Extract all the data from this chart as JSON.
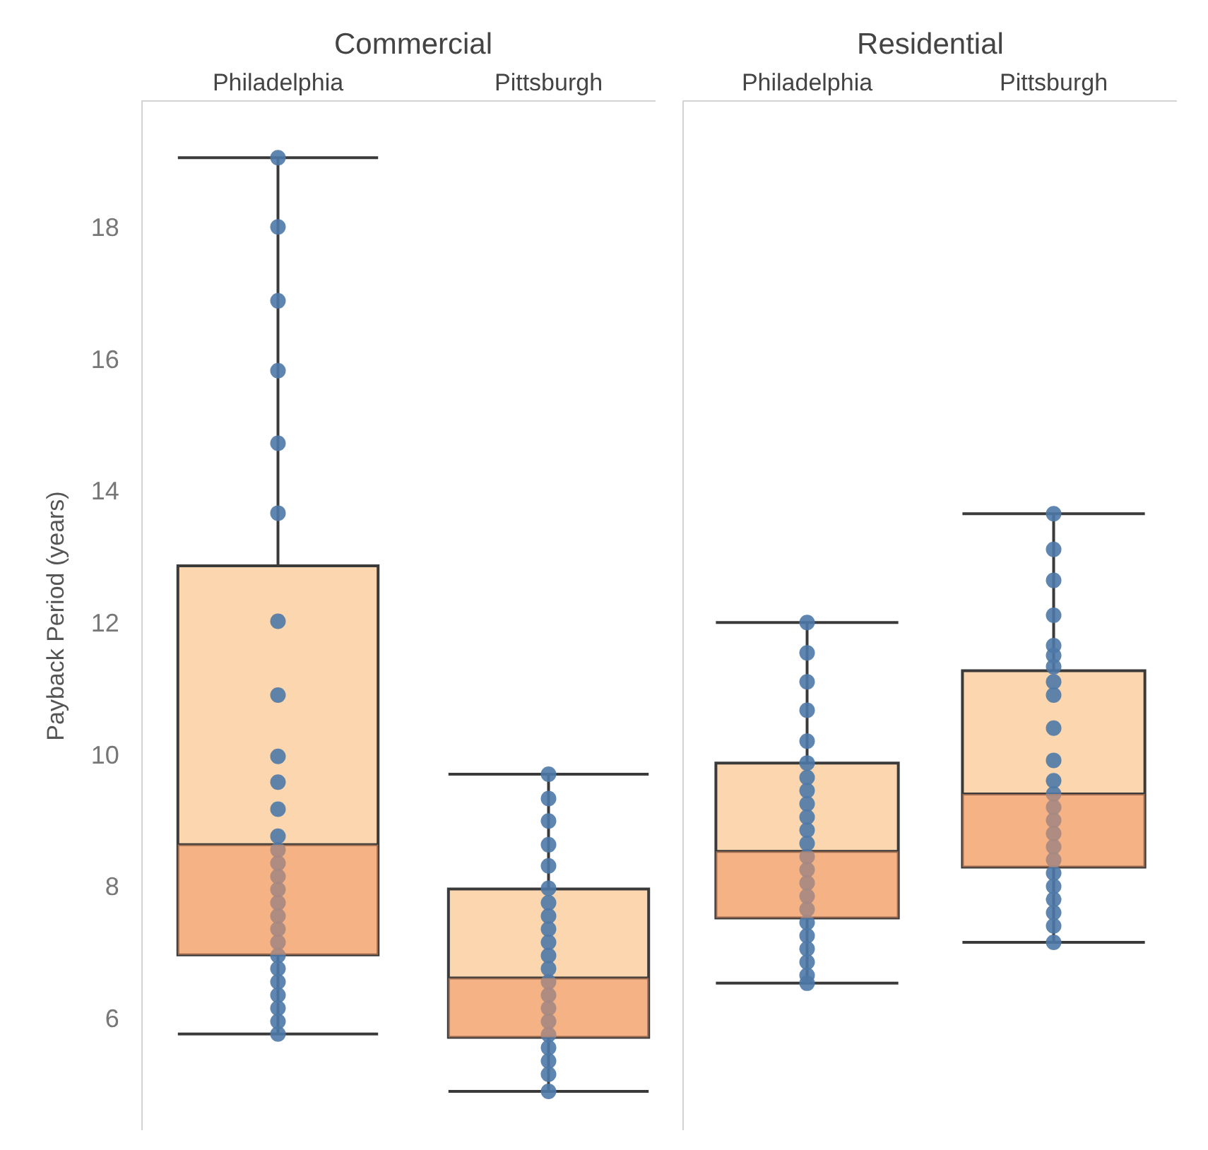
{
  "chart_data": [
    {
      "type": "box",
      "title": "Commercial",
      "ylabel": "Payback Period (years)",
      "categories": [
        "Philadelphia",
        "Pittsburgh"
      ],
      "ylim": [
        4.3,
        19.9
      ],
      "yticks": [
        6,
        8,
        10,
        12,
        14,
        16,
        18
      ],
      "grid": false,
      "series": [
        {
          "type": "scatter",
          "color": "#4e79a7",
          "marker": "circle",
          "x": [
            "Philadelphia",
            "Philadelphia",
            "Philadelphia",
            "Philadelphia",
            "Philadelphia",
            "Philadelphia",
            "Philadelphia",
            "Philadelphia",
            "Philadelphia",
            "Philadelphia",
            "Philadelphia",
            "Philadelphia",
            "Philadelphia",
            "Philadelphia",
            "Philadelphia",
            "Philadelphia",
            "Philadelphia",
            "Philadelphia",
            "Philadelphia",
            "Philadelphia",
            "Philadelphia",
            "Philadelphia",
            "Philadelphia",
            "Philadelphia",
            "Philadelphia",
            "Philadelphia",
            "Philadelphia",
            "Pittsburgh",
            "Pittsburgh",
            "Pittsburgh",
            "Pittsburgh",
            "Pittsburgh",
            "Pittsburgh",
            "Pittsburgh",
            "Pittsburgh",
            "Pittsburgh",
            "Pittsburgh",
            "Pittsburgh",
            "Pittsburgh",
            "Pittsburgh",
            "Pittsburgh",
            "Pittsburgh",
            "Pittsburgh",
            "Pittsburgh",
            "Pittsburgh",
            "Pittsburgh",
            "Pittsburgh",
            "Pittsburgh"
          ],
          "values": [
            19.05,
            18.0,
            16.88,
            15.82,
            14.72,
            13.66,
            12.02,
            10.9,
            9.97,
            9.58,
            9.17,
            8.76,
            8.55,
            8.35,
            8.15,
            7.95,
            7.75,
            7.55,
            7.35,
            7.15,
            6.95,
            6.75,
            6.55,
            6.35,
            6.15,
            5.95,
            5.76,
            9.7,
            9.33,
            8.99,
            8.63,
            8.31,
            7.97,
            7.75,
            7.55,
            7.35,
            7.15,
            6.95,
            6.75,
            6.55,
            6.35,
            6.15,
            5.95,
            5.75,
            5.55,
            5.35,
            5.15,
            4.89
          ]
        },
        {
          "colors": [
            "#f9c894",
            "#ee9563"
          ],
          "boxes": [
            {
              "low": 5.76,
              "q1": 6.96,
              "median": 8.63,
              "q3": 12.86,
              "high": 19.05
            },
            {
              "low": 4.89,
              "q1": 5.71,
              "median": 6.61,
              "q3": 7.96,
              "high": 9.7
            }
          ]
        }
      ]
    },
    {
      "type": "box",
      "title": "Residential",
      "categories": [
        "Philadelphia",
        "Pittsburgh"
      ],
      "ylim": [
        4.3,
        19.9
      ],
      "yticks": [
        6,
        8,
        10,
        12,
        14,
        16,
        18
      ],
      "tick_labels": "x",
      "grid": false,
      "series": [
        {
          "type": "scatter",
          "color": "#4e79a7",
          "marker": "circle",
          "x": [
            "Philadelphia",
            "Philadelphia",
            "Philadelphia",
            "Philadelphia",
            "Philadelphia",
            "Philadelphia",
            "Philadelphia",
            "Philadelphia",
            "Philadelphia",
            "Philadelphia",
            "Philadelphia",
            "Philadelphia",
            "Philadelphia",
            "Philadelphia",
            "Philadelphia",
            "Philadelphia",
            "Philadelphia",
            "Philadelphia",
            "Philadelphia",
            "Philadelphia",
            "Philadelphia",
            "Philadelphia",
            "Philadelphia",
            "Pittsburgh",
            "Pittsburgh",
            "Pittsburgh",
            "Pittsburgh",
            "Pittsburgh",
            "Pittsburgh",
            "Pittsburgh",
            "Pittsburgh",
            "Pittsburgh",
            "Pittsburgh",
            "Pittsburgh",
            "Pittsburgh",
            "Pittsburgh",
            "Pittsburgh",
            "Pittsburgh",
            "Pittsburgh",
            "Pittsburgh",
            "Pittsburgh",
            "Pittsburgh",
            "Pittsburgh",
            "Pittsburgh",
            "Pittsburgh",
            "Pittsburgh",
            "Pittsburgh"
          ],
          "values": [
            12.0,
            11.54,
            11.1,
            10.67,
            10.2,
            9.87,
            9.65,
            9.45,
            9.25,
            9.05,
            8.85,
            8.65,
            8.45,
            8.25,
            8.05,
            7.85,
            7.65,
            7.45,
            7.25,
            7.05,
            6.85,
            6.65,
            6.53,
            13.65,
            13.11,
            12.64,
            12.11,
            11.65,
            11.5,
            11.33,
            11.1,
            10.9,
            10.4,
            9.91,
            9.6,
            9.4,
            9.2,
            9.0,
            8.8,
            8.6,
            8.4,
            8.2,
            8.0,
            7.8,
            7.6,
            7.4,
            7.15
          ]
        },
        {
          "colors": [
            "#f9c894",
            "#ee9563"
          ],
          "boxes": [
            {
              "low": 6.53,
              "q1": 7.52,
              "median": 8.53,
              "q3": 9.87,
              "high": 12.0
            },
            {
              "low": 7.15,
              "q1": 8.29,
              "median": 9.4,
              "q3": 11.27,
              "high": 13.65
            }
          ]
        }
      ]
    }
  ]
}
